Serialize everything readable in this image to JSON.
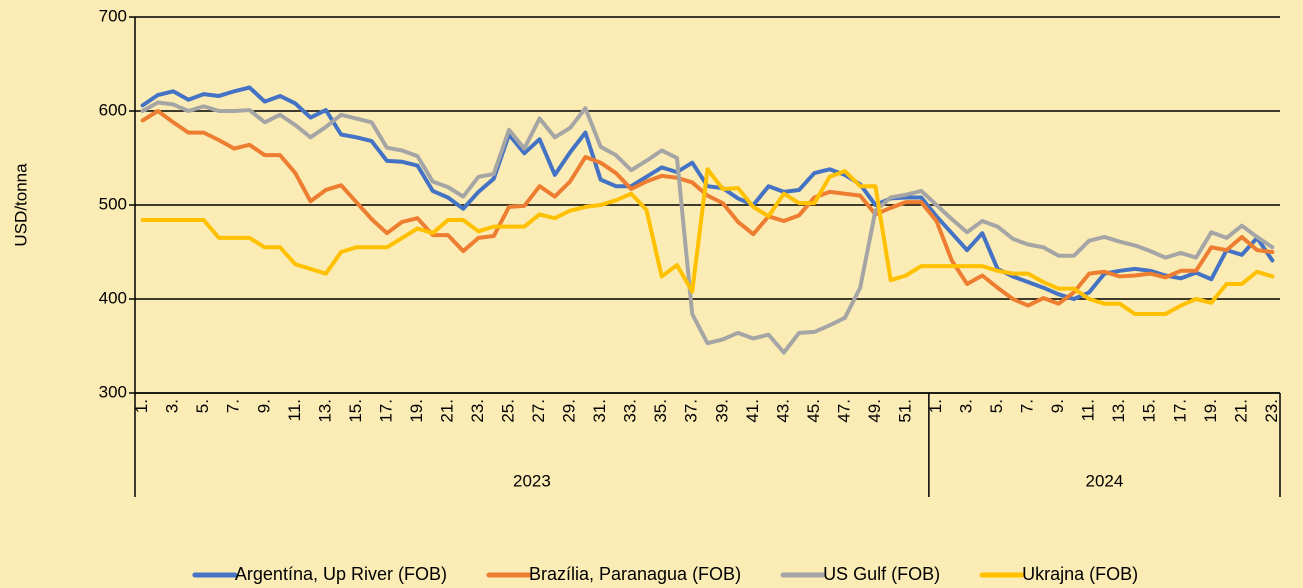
{
  "chart_data": {
    "type": "line",
    "y_axis_label": "USD/tonna",
    "groups": [
      "2023",
      "2024"
    ],
    "categories": [
      "1.",
      null,
      "3.",
      null,
      "5.",
      null,
      "7.",
      null,
      "9.",
      null,
      "11.",
      null,
      "13.",
      null,
      "15.",
      null,
      "17.",
      null,
      "19.",
      null,
      "21.",
      null,
      "23.",
      null,
      "25.",
      null,
      "27.",
      null,
      "29.",
      null,
      "31.",
      null,
      "33.",
      null,
      "35.",
      null,
      "37.",
      null,
      "39.",
      null,
      "41.",
      null,
      "43.",
      null,
      "45.",
      null,
      "47.",
      null,
      "49.",
      null,
      "51.",
      null,
      "1.",
      null,
      "3.",
      null,
      "5.",
      null,
      "7.",
      null,
      "9.",
      null,
      "11.",
      null,
      "13.",
      null,
      "15.",
      null,
      "17.",
      null,
      "19.",
      null,
      "21.",
      null,
      "23."
    ],
    "ylim": [
      300,
      700
    ],
    "yticks": [
      300,
      400,
      500,
      600,
      700
    ],
    "grid": true,
    "legend": "bottom",
    "series": [
      {
        "name": "Argentína, Up River (FOB)",
        "color": "#4472c4",
        "values": [
          606,
          617,
          621,
          612,
          618,
          616,
          621,
          625,
          610,
          616,
          608,
          593,
          601,
          575,
          572,
          568,
          547,
          546,
          542,
          515,
          508,
          496,
          514,
          528,
          575,
          555,
          570,
          532,
          556,
          577,
          527,
          520,
          520,
          530,
          540,
          535,
          545,
          520,
          518,
          507,
          500,
          520,
          514,
          516,
          534,
          538,
          532,
          522,
          500,
          507,
          508,
          508,
          488,
          470,
          452,
          470,
          432,
          424,
          418,
          412,
          405,
          400,
          407,
          427,
          430,
          432,
          430,
          425,
          422,
          428,
          421,
          452,
          447,
          465,
          441
        ]
      },
      {
        "name": "Brazília, Paranagua (FOB)",
        "color": "#ed7d31",
        "values": [
          590,
          600,
          588,
          577,
          577,
          569,
          560,
          564,
          553,
          553,
          534,
          504,
          516,
          521,
          503,
          485,
          470,
          482,
          486,
          468,
          468,
          451,
          465,
          467,
          498,
          499,
          520,
          509,
          525,
          551,
          545,
          534,
          517,
          525,
          531,
          529,
          524,
          510,
          502,
          482,
          469,
          488,
          483,
          489,
          508,
          514,
          512,
          510,
          490,
          497,
          503,
          503,
          483,
          441,
          416,
          425,
          412,
          400,
          393,
          401,
          395,
          407,
          427,
          429,
          424,
          425,
          427,
          423,
          430,
          430,
          455,
          452,
          466,
          452,
          450
        ]
      },
      {
        "name": "US Gulf (FOB)",
        "color": "#a5a5a5",
        "values": [
          600,
          609,
          607,
          600,
          605,
          600,
          600,
          601,
          588,
          596,
          585,
          572,
          583,
          596,
          592,
          588,
          561,
          558,
          552,
          525,
          519,
          509,
          530,
          533,
          580,
          560,
          592,
          572,
          582,
          603,
          562,
          553,
          537,
          547,
          558,
          550,
          384,
          353,
          357,
          364,
          358,
          362,
          343,
          364,
          365,
          372,
          380,
          412,
          494,
          508,
          511,
          515,
          500,
          485,
          471,
          483,
          477,
          464,
          458,
          455,
          446,
          446,
          462,
          466,
          461,
          457,
          451,
          444,
          449,
          444,
          471,
          465,
          478,
          466,
          455
        ]
      },
      {
        "name": "Ukrajna (FOB)",
        "color": "#ffc000",
        "values": [
          484,
          484,
          484,
          484,
          484,
          465,
          465,
          465,
          455,
          455,
          437,
          432,
          427,
          450,
          455,
          455,
          455,
          465,
          475,
          470,
          484,
          484,
          472,
          477,
          477,
          477,
          490,
          486,
          494,
          498,
          500,
          505,
          512,
          495,
          424,
          436,
          408,
          538,
          517,
          518,
          498,
          488,
          512,
          502,
          502,
          530,
          536,
          520,
          520,
          420,
          425,
          435,
          435,
          435,
          435,
          435,
          430,
          427,
          427,
          418,
          411,
          411,
          400,
          395,
          395,
          384,
          384,
          384,
          393,
          400,
          396,
          416,
          416,
          429,
          424
        ]
      }
    ]
  }
}
